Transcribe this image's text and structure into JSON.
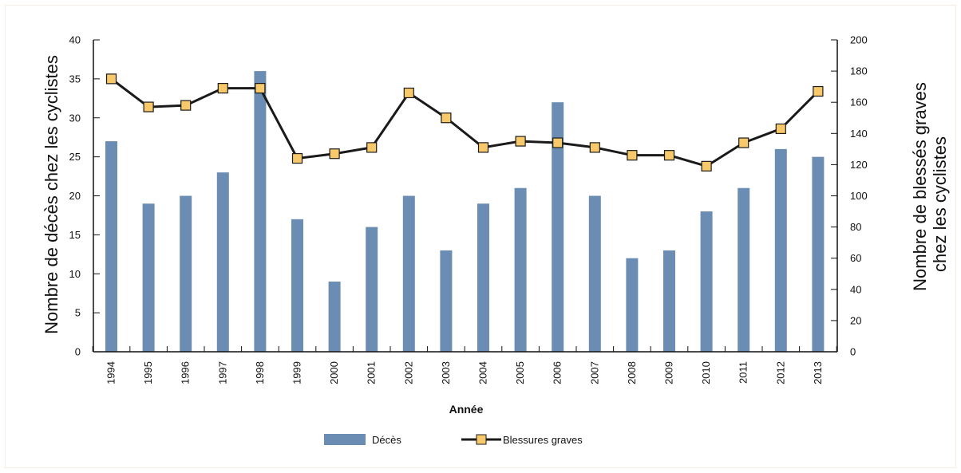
{
  "chart_data": {
    "type": "bar",
    "xlabel": "Année",
    "ylabel_left": "Nombre de décès chez les cyclistes",
    "ylabel_right_line1": "Nombre de blessés graves",
    "ylabel_right_line2": "chez les cyclistes",
    "categories": [
      "1994",
      "1995",
      "1996",
      "1997",
      "1998",
      "1999",
      "2000",
      "2001",
      "2002",
      "2003",
      "2004",
      "2005",
      "2006",
      "2007",
      "2008",
      "2009",
      "2010",
      "2011",
      "2012",
      "2013"
    ],
    "ylim_left": [
      0,
      40
    ],
    "ylim_right": [
      0,
      200
    ],
    "yticks_left": [
      "0",
      "5",
      "10",
      "15",
      "20",
      "25",
      "30",
      "35",
      "40"
    ],
    "yticks_right": [
      "0",
      "20",
      "40",
      "60",
      "80",
      "100",
      "120",
      "140",
      "160",
      "180",
      "200"
    ],
    "series": [
      {
        "name": "Décès",
        "type": "bar",
        "axis": "left",
        "color": "#6b8db4",
        "values": [
          27,
          19,
          20,
          23,
          36,
          17,
          9,
          16,
          20,
          13,
          19,
          21,
          32,
          20,
          12,
          13,
          18,
          21,
          26,
          25
        ]
      },
      {
        "name": "Blessures graves",
        "type": "line",
        "axis": "right",
        "color": "#1a1a1a",
        "marker_color": "#f7c96a",
        "values": [
          175,
          157,
          158,
          169,
          169,
          124,
          127,
          131,
          166,
          150,
          131,
          135,
          134,
          131,
          126,
          126,
          119,
          134,
          143,
          167
        ]
      }
    ],
    "legend_placement": "bottom-center",
    "grid": false
  }
}
